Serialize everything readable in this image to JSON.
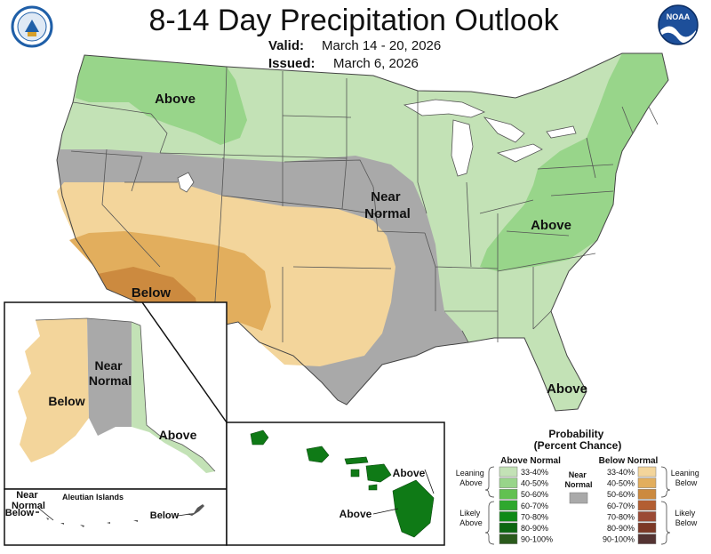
{
  "header": {
    "title": "8-14 Day Precipitation Outlook",
    "valid_label": "Valid:",
    "valid_value": "March 14 - 20, 2026",
    "issued_label": "Issued:",
    "issued_value": "March 6, 2026"
  },
  "logos": {
    "left": {
      "icon": "doc-seal-icon",
      "text": "DEPARTMENT OF COMMERCE"
    },
    "right": {
      "icon": "noaa-logo-icon",
      "text": "NOAA"
    }
  },
  "map_labels": {
    "northwest": "Above",
    "central": "Near\nNormal",
    "southwest": "Below",
    "mid_atlantic": "Above",
    "florida": "Above"
  },
  "alaska_labels": {
    "below": "Below",
    "near_normal": "Near\nNormal",
    "above": "Above"
  },
  "aleutian_labels": {
    "near_normal": "Near\nNormal",
    "title": "Aleutian Islands",
    "below_left": "Below",
    "below_right": "Below"
  },
  "hawaii_labels": {
    "above_1": "Above",
    "above_2": "Above"
  },
  "legend": {
    "title": "Probability\n(Percent Chance)",
    "above_header": "Above Normal",
    "below_header": "Below Normal",
    "near_normal": "Near\nNormal",
    "leaning_above": "Leaning\nAbove",
    "likely_above": "Likely\nAbove",
    "leaning_below": "Leaning\nBelow",
    "likely_below": "Likely\nBelow",
    "categories": [
      "33-40%",
      "40-50%",
      "50-60%",
      "60-70%",
      "70-80%",
      "80-90%",
      "90-100%"
    ],
    "above_colors": [
      "#c3e2b6",
      "#98d58a",
      "#62c151",
      "#2fa82e",
      "#0f8a16",
      "#0c6710",
      "#2a5a1c"
    ],
    "below_colors": [
      "#f3d59b",
      "#e2ae5d",
      "#cc8a3f",
      "#b35e32",
      "#9b4a35",
      "#7c3826",
      "#543332"
    ],
    "near_color": "#a9a9a9"
  },
  "map_colors": {
    "leaning_above": "#c3e2b6",
    "above_40_50": "#98d58a",
    "near_normal": "#a9a9a9",
    "leaning_below": "#f3d59b",
    "below_40_50": "#e2ae5d",
    "below_50_60": "#cc8a3f",
    "hawaii_above": "#0f7a16",
    "water": "#ffffff"
  }
}
